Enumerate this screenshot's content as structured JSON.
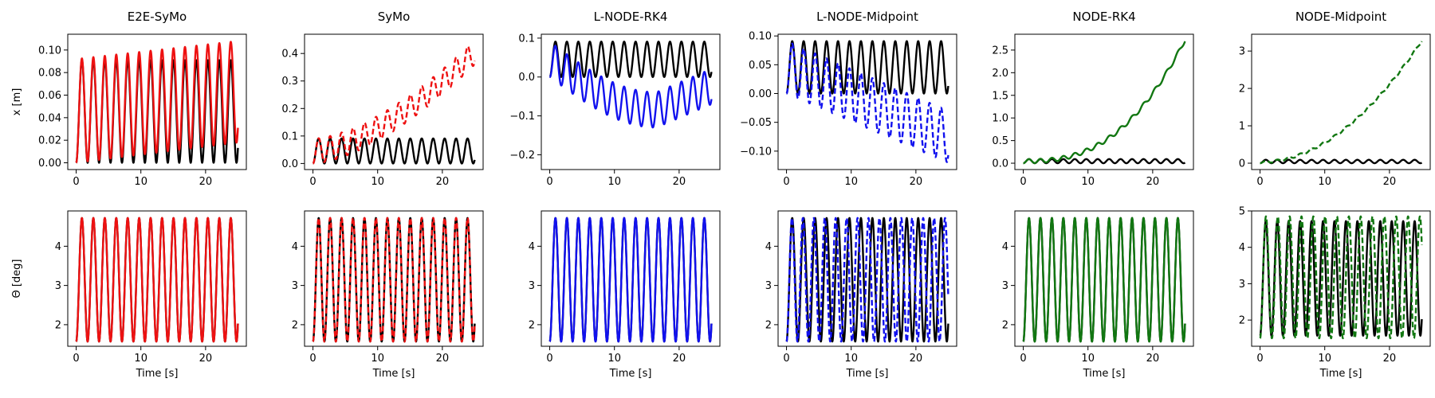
{
  "figure": {
    "common_xlabel": "Time [s]",
    "row_ylabels": [
      "x [m]",
      "Θ [deg]"
    ],
    "colors": {
      "ground_truth": "#000000",
      "symo": "#ee1111",
      "lnode": "#1111ee",
      "node": "#117711"
    }
  },
  "chart_data": [
    {
      "type": "line",
      "row": 0,
      "col": 0,
      "title": "E2E-SyMo",
      "xlabel": "",
      "ylabel": "x [m]",
      "xlim": [
        -1.3,
        26.3
      ],
      "ylim": [
        -0.006,
        0.114
      ],
      "xticks": [
        0,
        10,
        20
      ],
      "yticks": [
        0.0,
        0.02,
        0.04,
        0.06,
        0.08,
        0.1
      ],
      "ytick_labels": [
        "0.00",
        "0.02",
        "0.04",
        "0.06",
        "0.08",
        "0.10"
      ],
      "series": [
        {
          "role": "ground truth",
          "color": "#000000",
          "dashed": false,
          "shape": "pos",
          "period": 1.77,
          "min": 0.0,
          "max": 0.091
        },
        {
          "role": "prediction",
          "color": "#ee1111",
          "dashed": false,
          "shape": "pos",
          "period": 1.77,
          "min": 0.0,
          "max": 0.092,
          "max_end": 0.108,
          "min_end": 0.018
        }
      ]
    },
    {
      "type": "line",
      "row": 0,
      "col": 1,
      "title": "SyMo",
      "xlabel": "",
      "ylabel": "",
      "xlim": [
        -1.3,
        26.3
      ],
      "ylim": [
        -0.022,
        0.47
      ],
      "xticks": [
        0,
        10,
        20
      ],
      "yticks": [
        0.0,
        0.1,
        0.2,
        0.3,
        0.4
      ],
      "ytick_labels": [
        "0.0",
        "0.1",
        "0.2",
        "0.3",
        "0.4"
      ],
      "series": [
        {
          "role": "ground truth",
          "color": "#000000",
          "dashed": false,
          "shape": "pos",
          "period": 1.77,
          "min": 0.0,
          "max": 0.091
        },
        {
          "role": "prediction",
          "color": "#ee1111",
          "dashed": true,
          "shape": "pos",
          "period": 1.77,
          "min": 0.0,
          "max": 0.09,
          "trend": 0.36,
          "trend_pow": 1.6
        }
      ]
    },
    {
      "type": "line",
      "row": 0,
      "col": 2,
      "title": "L-NODE-RK4",
      "xlabel": "",
      "ylabel": "",
      "xlim": [
        -1.3,
        26.3
      ],
      "ylim": [
        -0.238,
        0.11
      ],
      "xticks": [
        0,
        10,
        20
      ],
      "yticks": [
        -0.2,
        -0.1,
        0.0,
        0.1
      ],
      "ytick_labels": [
        "−0.2",
        "−0.1",
        "0.0",
        "0.1"
      ],
      "series": [
        {
          "role": "ground truth",
          "color": "#000000",
          "dashed": false,
          "shape": "pos",
          "period": 1.77,
          "min": 0.0,
          "max": 0.091
        },
        {
          "role": "prediction",
          "color": "#1111ee",
          "dashed": false,
          "shape": "bowl",
          "period": 1.77,
          "min": 0.0,
          "max": 0.091,
          "drift_min": -0.13,
          "drift_t": 16.5,
          "drift_end": -0.07
        }
      ]
    },
    {
      "type": "line",
      "row": 0,
      "col": 3,
      "title": "L-NODE-Midpoint",
      "xlabel": "",
      "ylabel": "",
      "xlim": [
        -1.3,
        26.3
      ],
      "ylim": [
        -0.132,
        0.103
      ],
      "xticks": [
        0,
        10,
        20
      ],
      "yticks": [
        -0.1,
        -0.05,
        0.0,
        0.05,
        0.1
      ],
      "ytick_labels": [
        "−0.10",
        "−0.05",
        "0.00",
        "0.05",
        "0.10"
      ],
      "series": [
        {
          "role": "ground truth",
          "color": "#000000",
          "dashed": false,
          "shape": "pos",
          "period": 1.77,
          "min": 0.0,
          "max": 0.091
        },
        {
          "role": "prediction",
          "color": "#1111ee",
          "dashed": true,
          "shape": "grow",
          "period": 1.77,
          "min": 0.0,
          "max": 0.091,
          "low_end": -0.12,
          "high_end": -0.03
        }
      ]
    },
    {
      "type": "line",
      "row": 0,
      "col": 4,
      "title": "NODE-RK4",
      "xlabel": "",
      "ylabel": "",
      "xlim": [
        -1.3,
        26.3
      ],
      "ylim": [
        -0.14,
        2.85
      ],
      "xticks": [
        0,
        10,
        20
      ],
      "yticks": [
        0.0,
        0.5,
        1.0,
        1.5,
        2.0,
        2.5
      ],
      "ytick_labels": [
        "0.0",
        "0.5",
        "1.0",
        "1.5",
        "2.0",
        "2.5"
      ],
      "series": [
        {
          "role": "ground truth",
          "color": "#000000",
          "dashed": false,
          "shape": "pos",
          "period": 1.77,
          "min": 0.0,
          "max": 0.091
        },
        {
          "role": "prediction",
          "color": "#117711",
          "dashed": false,
          "shape": "pos",
          "period": 1.77,
          "min": 0.0,
          "max": 0.09,
          "trend": 2.68,
          "trend_pow": 2.6
        }
      ]
    },
    {
      "type": "line",
      "row": 0,
      "col": 5,
      "title": "NODE-Midpoint",
      "xlabel": "",
      "ylabel": "",
      "xlim": [
        -1.3,
        26.3
      ],
      "ylim": [
        -0.17,
        3.45
      ],
      "xticks": [
        0,
        10,
        20
      ],
      "yticks": [
        0,
        1,
        2,
        3
      ],
      "ytick_labels": [
        "0",
        "1",
        "2",
        "3"
      ],
      "series": [
        {
          "role": "ground truth",
          "color": "#000000",
          "dashed": false,
          "shape": "pos",
          "period": 1.77,
          "min": 0.0,
          "max": 0.091
        },
        {
          "role": "prediction",
          "color": "#117711",
          "dashed": true,
          "shape": "pos",
          "period": 1.77,
          "min": 0.0,
          "max": 0.06,
          "trend": 3.25,
          "trend_pow": 2.0
        }
      ]
    },
    {
      "type": "line",
      "row": 1,
      "col": 0,
      "title": "",
      "xlabel": "Time [s]",
      "ylabel": "Θ [deg]",
      "xlim": [
        -1.3,
        26.3
      ],
      "ylim": [
        1.45,
        4.9
      ],
      "xticks": [
        0,
        10,
        20
      ],
      "yticks": [
        2,
        3,
        4
      ],
      "ytick_labels": [
        "2",
        "3",
        "4"
      ],
      "series": [
        {
          "role": "ground truth",
          "color": "#000000",
          "dashed": false,
          "shape": "sin",
          "period": 1.77,
          "min": 1.57,
          "max": 4.72
        },
        {
          "role": "prediction",
          "color": "#ee1111",
          "dashed": false,
          "shape": "sin",
          "period": 1.77,
          "min": 1.57,
          "max": 4.72
        }
      ]
    },
    {
      "type": "line",
      "row": 1,
      "col": 1,
      "title": "",
      "xlabel": "Time [s]",
      "ylabel": "",
      "xlim": [
        -1.3,
        26.3
      ],
      "ylim": [
        1.45,
        4.9
      ],
      "xticks": [
        0,
        10,
        20
      ],
      "yticks": [
        2,
        3,
        4
      ],
      "ytick_labels": [
        "2",
        "3",
        "4"
      ],
      "series": [
        {
          "role": "ground truth",
          "color": "#000000",
          "dashed": false,
          "shape": "sin",
          "period": 1.77,
          "min": 1.57,
          "max": 4.72
        },
        {
          "role": "prediction",
          "color": "#ee1111",
          "dashed": true,
          "shape": "sin",
          "period": 1.77,
          "min": 1.57,
          "max": 4.72
        }
      ]
    },
    {
      "type": "line",
      "row": 1,
      "col": 2,
      "title": "",
      "xlabel": "Time [s]",
      "ylabel": "",
      "xlim": [
        -1.3,
        26.3
      ],
      "ylim": [
        1.45,
        4.9
      ],
      "xticks": [
        0,
        10,
        20
      ],
      "yticks": [
        2,
        3,
        4
      ],
      "ytick_labels": [
        "2",
        "3",
        "4"
      ],
      "series": [
        {
          "role": "ground truth",
          "color": "#000000",
          "dashed": false,
          "shape": "sin",
          "period": 1.77,
          "min": 1.57,
          "max": 4.72
        },
        {
          "role": "prediction",
          "color": "#1111ee",
          "dashed": false,
          "shape": "sin",
          "period": 1.77,
          "min": 1.57,
          "max": 4.72
        }
      ]
    },
    {
      "type": "line",
      "row": 1,
      "col": 3,
      "title": "",
      "xlabel": "Time [s]",
      "ylabel": "",
      "xlim": [
        -1.3,
        26.3
      ],
      "ylim": [
        1.45,
        4.9
      ],
      "xticks": [
        0,
        10,
        20
      ],
      "yticks": [
        2,
        3,
        4
      ],
      "ytick_labels": [
        "2",
        "3",
        "4"
      ],
      "series": [
        {
          "role": "ground truth",
          "color": "#000000",
          "dashed": false,
          "shape": "sin",
          "period": 1.77,
          "min": 1.57,
          "max": 4.72
        },
        {
          "role": "prediction",
          "color": "#1111ee",
          "dashed": true,
          "shape": "sin",
          "period": 1.69,
          "min": 1.57,
          "max": 4.72
        }
      ]
    },
    {
      "type": "line",
      "row": 1,
      "col": 4,
      "title": "",
      "xlabel": "Time [s]",
      "ylabel": "",
      "xlim": [
        -1.3,
        26.3
      ],
      "ylim": [
        1.45,
        4.9
      ],
      "xticks": [
        0,
        10,
        20
      ],
      "yticks": [
        2,
        3,
        4
      ],
      "ytick_labels": [
        "2",
        "3",
        "4"
      ],
      "series": [
        {
          "role": "ground truth",
          "color": "#000000",
          "dashed": false,
          "shape": "sin",
          "period": 1.77,
          "min": 1.57,
          "max": 4.72
        },
        {
          "role": "prediction",
          "color": "#117711",
          "dashed": false,
          "shape": "sin",
          "period": 1.77,
          "min": 1.57,
          "max": 4.72
        }
      ]
    },
    {
      "type": "line",
      "row": 1,
      "col": 5,
      "title": "",
      "xlabel": "Time [s]",
      "ylabel": "",
      "xlim": [
        -1.3,
        26.3
      ],
      "ylim": [
        1.28,
        5.0
      ],
      "xticks": [
        0,
        10,
        20
      ],
      "yticks": [
        2,
        3,
        4,
        5
      ],
      "ytick_labels": [
        "2",
        "3",
        "4",
        "5"
      ],
      "series": [
        {
          "role": "ground truth",
          "color": "#000000",
          "dashed": false,
          "shape": "sin",
          "period": 1.77,
          "min": 1.57,
          "max": 4.72
        },
        {
          "role": "prediction",
          "color": "#117711",
          "dashed": true,
          "shape": "sin",
          "period": 1.83,
          "min": 1.5,
          "max": 4.85
        }
      ]
    }
  ]
}
